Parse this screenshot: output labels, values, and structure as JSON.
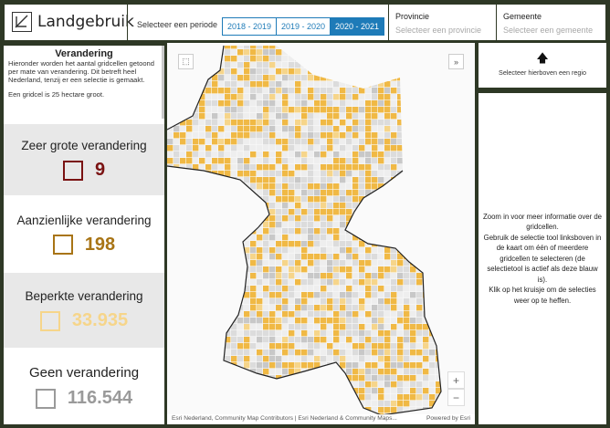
{
  "app": {
    "title": "Landgebruik",
    "logo_icon": "chart-logo-icon"
  },
  "header": {
    "period_label": "Selecteer een periode",
    "periods": [
      "2018 - 2019",
      "2019 - 2020",
      "2020 - 2021"
    ],
    "active_period": "2020 - 2021",
    "province": {
      "label": "Provincie",
      "placeholder": "Selecteer een provincie"
    },
    "municipality": {
      "label": "Gemeente",
      "placeholder": "Selecteer een gemeente"
    }
  },
  "left": {
    "title": "Verandering",
    "description": "Hieronder worden het aantal gridcellen getoond per mate van verandering. Dit betreft heel Nederland, tenzij er een selectie is gemaakt.",
    "grid_note": "Een gridcel is 25 hectare groot.",
    "categories": [
      {
        "label": "Zeer grote verandering",
        "value": "9",
        "color": "#7a1212"
      },
      {
        "label": "Aanzienlijke verandering",
        "value": "198",
        "color": "#a87415"
      },
      {
        "label": "Beperkte verandering",
        "value": "33.935",
        "color": "#f6d58a"
      },
      {
        "label": "Geen verandering",
        "value": "116.544",
        "color": "#9a9a9a"
      }
    ]
  },
  "map": {
    "attribution": "Esri Nederland, Community Map Contributors | Esri Nederland & Community Maps...",
    "powered_by": "Powered by Esri",
    "zoom_in": "+",
    "zoom_out": "−",
    "select_tool_icon": "selection-tool-icon",
    "collapse_icon": "chevron-double-down-icon"
  },
  "right": {
    "region_hint": "Selecteer hierboven een regio",
    "region_icon": "arrow-up-icon",
    "info": [
      "Zoom in voor meer informatie over de gridcellen.",
      "Gebruik de selectie tool linksboven in de kaart om één of meerdere gridcellen te selecteren (de selectietool is actief als deze blauw is).",
      "Klik op het kruisje om de selecties weer op te heffen."
    ]
  },
  "colors": {
    "background": "#2e3825",
    "accent": "#1e7bb8",
    "change_limited": "#f0b945",
    "no_change": "#dcdcdc"
  }
}
